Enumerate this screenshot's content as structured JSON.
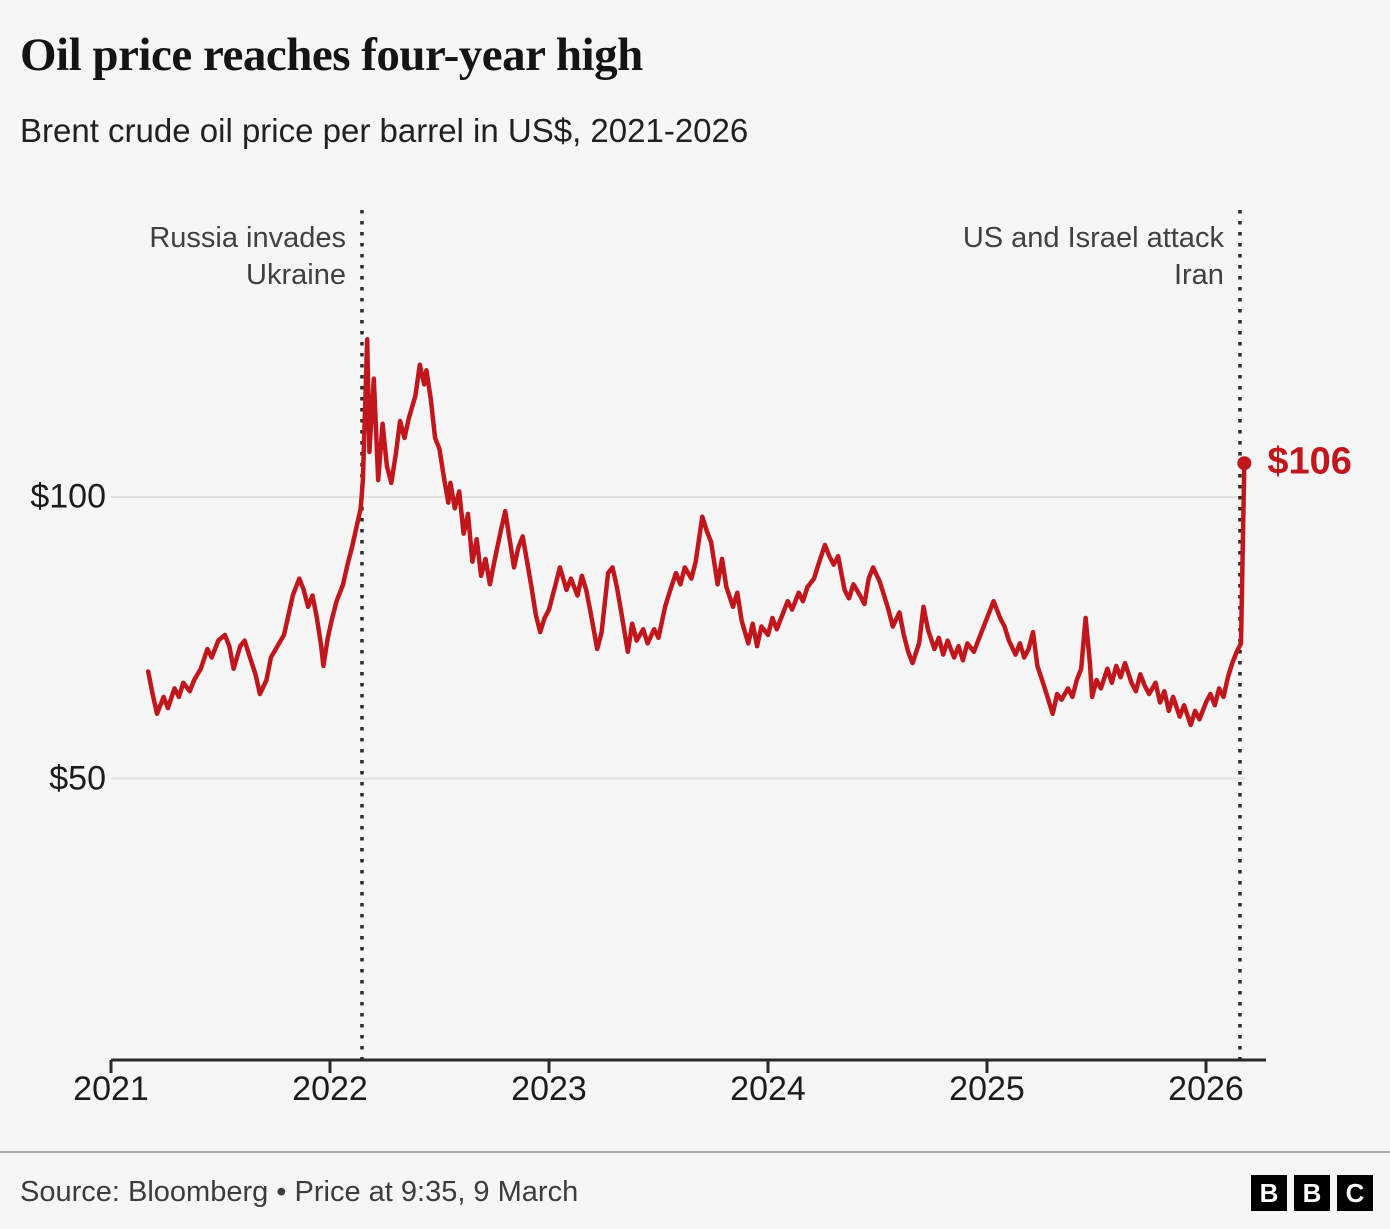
{
  "header": {
    "title": "Oil price reaches four-year high",
    "subtitle": "Brent crude oil price per barrel in US$, 2021-2026"
  },
  "footer": {
    "source_line": "Source: Bloomberg • Price at 9:35, 9 March",
    "logo_letters": [
      "B",
      "B",
      "C"
    ]
  },
  "colors": {
    "line": "#c0161c",
    "grid": "#e0e0e0",
    "axis": "#29292b",
    "event_line": "#2b2b2b"
  },
  "chart_data": {
    "type": "line",
    "title": "Oil price reaches four-year high",
    "subtitle": "Brent crude oil price per barrel in US$, 2021-2026",
    "xlabel": "",
    "ylabel": "Brent crude oil price per barrel (US$)",
    "grid": "horizontal",
    "legend": "none",
    "xlim": [
      2021,
      2026.27
    ],
    "ylim": [
      0,
      150
    ],
    "x_tick_values": [
      2021,
      2022,
      2023,
      2024,
      2025,
      2026
    ],
    "x_tick_labels": [
      "2021",
      "2022",
      "2023",
      "2024",
      "2025",
      "2026"
    ],
    "y_tick_values": [
      50,
      100
    ],
    "y_tick_labels": [
      "$50",
      "$100"
    ],
    "end_label": "$106",
    "end_value": 106,
    "annotations": [
      {
        "text": "Russia invades Ukraine",
        "x": 2022.146
      },
      {
        "text": "US and Israel attack Iran",
        "x": 2026.155
      }
    ],
    "series": [
      {
        "name": "Brent crude oil price (US$ per barrel)",
        "points": [
          [
            2021.17,
            69
          ],
          [
            2021.19,
            65
          ],
          [
            2021.21,
            61.5
          ],
          [
            2021.24,
            64.5
          ],
          [
            2021.26,
            62.5
          ],
          [
            2021.29,
            66
          ],
          [
            2021.31,
            64.5
          ],
          [
            2021.33,
            67
          ],
          [
            2021.36,
            65.5
          ],
          [
            2021.38,
            67.5
          ],
          [
            2021.41,
            69.5
          ],
          [
            2021.44,
            73
          ],
          [
            2021.46,
            71.5
          ],
          [
            2021.49,
            74.5
          ],
          [
            2021.52,
            75.5
          ],
          [
            2021.54,
            73.5
          ],
          [
            2021.56,
            69.5
          ],
          [
            2021.59,
            73.5
          ],
          [
            2021.61,
            74.5
          ],
          [
            2021.63,
            72
          ],
          [
            2021.66,
            68.5
          ],
          [
            2021.68,
            65
          ],
          [
            2021.71,
            67.5
          ],
          [
            2021.73,
            71.5
          ],
          [
            2021.76,
            73.5
          ],
          [
            2021.79,
            75.5
          ],
          [
            2021.81,
            79
          ],
          [
            2021.83,
            82.5
          ],
          [
            2021.86,
            85.5
          ],
          [
            2021.88,
            83.5
          ],
          [
            2021.9,
            80.5
          ],
          [
            2021.92,
            82.5
          ],
          [
            2021.94,
            78.5
          ],
          [
            2021.96,
            73.5
          ],
          [
            2021.97,
            70
          ],
          [
            2021.99,
            75
          ],
          [
            2022.01,
            78.5
          ],
          [
            2022.03,
            81.5
          ],
          [
            2022.06,
            84.5
          ],
          [
            2022.08,
            88
          ],
          [
            2022.1,
            91
          ],
          [
            2022.12,
            94.5
          ],
          [
            2022.14,
            98
          ],
          [
            2022.15,
            103
          ],
          [
            2022.17,
            128
          ],
          [
            2022.18,
            108
          ],
          [
            2022.2,
            121
          ],
          [
            2022.22,
            103
          ],
          [
            2022.24,
            113
          ],
          [
            2022.26,
            105.5
          ],
          [
            2022.28,
            102.5
          ],
          [
            2022.3,
            107.5
          ],
          [
            2022.32,
            113.5
          ],
          [
            2022.34,
            110.5
          ],
          [
            2022.36,
            114
          ],
          [
            2022.39,
            118
          ],
          [
            2022.41,
            123.5
          ],
          [
            2022.43,
            120
          ],
          [
            2022.44,
            122.5
          ],
          [
            2022.46,
            117.5
          ],
          [
            2022.48,
            110.5
          ],
          [
            2022.5,
            108.5
          ],
          [
            2022.52,
            103.5
          ],
          [
            2022.54,
            99
          ],
          [
            2022.55,
            102.5
          ],
          [
            2022.57,
            98
          ],
          [
            2022.59,
            101
          ],
          [
            2022.61,
            93.5
          ],
          [
            2022.63,
            97
          ],
          [
            2022.65,
            88.5
          ],
          [
            2022.67,
            92.5
          ],
          [
            2022.69,
            86
          ],
          [
            2022.71,
            89
          ],
          [
            2022.73,
            84.5
          ],
          [
            2022.75,
            88.5
          ],
          [
            2022.78,
            94
          ],
          [
            2022.8,
            97.5
          ],
          [
            2022.82,
            92.5
          ],
          [
            2022.84,
            87.5
          ],
          [
            2022.86,
            91
          ],
          [
            2022.88,
            93
          ],
          [
            2022.9,
            88.5
          ],
          [
            2022.92,
            84
          ],
          [
            2022.94,
            79
          ],
          [
            2022.96,
            76
          ],
          [
            2022.98,
            78.5
          ],
          [
            2023,
            80
          ],
          [
            2023.03,
            84.5
          ],
          [
            2023.05,
            87.5
          ],
          [
            2023.08,
            83.5
          ],
          [
            2023.1,
            85.5
          ],
          [
            2023.13,
            82.5
          ],
          [
            2023.15,
            86
          ],
          [
            2023.17,
            83.5
          ],
          [
            2023.19,
            79.5
          ],
          [
            2023.22,
            73
          ],
          [
            2023.24,
            76
          ],
          [
            2023.27,
            86.5
          ],
          [
            2023.29,
            87.5
          ],
          [
            2023.31,
            84
          ],
          [
            2023.33,
            79.5
          ],
          [
            2023.36,
            72.5
          ],
          [
            2023.38,
            77.5
          ],
          [
            2023.4,
            74.5
          ],
          [
            2023.43,
            76.5
          ],
          [
            2023.45,
            74
          ],
          [
            2023.48,
            76.5
          ],
          [
            2023.5,
            75
          ],
          [
            2023.53,
            80.5
          ],
          [
            2023.55,
            83
          ],
          [
            2023.58,
            86.5
          ],
          [
            2023.6,
            84.5
          ],
          [
            2023.62,
            87.5
          ],
          [
            2023.65,
            85.5
          ],
          [
            2023.67,
            88.5
          ],
          [
            2023.7,
            96.5
          ],
          [
            2023.72,
            94
          ],
          [
            2023.74,
            92
          ],
          [
            2023.77,
            84.5
          ],
          [
            2023.79,
            89
          ],
          [
            2023.81,
            84
          ],
          [
            2023.84,
            80.5
          ],
          [
            2023.86,
            83
          ],
          [
            2023.88,
            78
          ],
          [
            2023.91,
            74
          ],
          [
            2023.93,
            77.5
          ],
          [
            2023.95,
            73.5
          ],
          [
            2023.97,
            77
          ],
          [
            2024,
            75.5
          ],
          [
            2024.02,
            78.5
          ],
          [
            2024.04,
            76.5
          ],
          [
            2024.07,
            79.5
          ],
          [
            2024.09,
            81.5
          ],
          [
            2024.11,
            80
          ],
          [
            2024.14,
            83
          ],
          [
            2024.16,
            81.5
          ],
          [
            2024.18,
            84
          ],
          [
            2024.21,
            85.5
          ],
          [
            2024.23,
            88
          ],
          [
            2024.26,
            91.5
          ],
          [
            2024.28,
            89.5
          ],
          [
            2024.3,
            88
          ],
          [
            2024.32,
            89.5
          ],
          [
            2024.35,
            83.5
          ],
          [
            2024.37,
            82
          ],
          [
            2024.39,
            84.5
          ],
          [
            2024.42,
            82.5
          ],
          [
            2024.44,
            81
          ],
          [
            2024.46,
            85.5
          ],
          [
            2024.48,
            87.5
          ],
          [
            2024.51,
            85
          ],
          [
            2024.53,
            82.5
          ],
          [
            2024.55,
            80
          ],
          [
            2024.57,
            77
          ],
          [
            2024.6,
            79.5
          ],
          [
            2024.62,
            75.5
          ],
          [
            2024.64,
            72.5
          ],
          [
            2024.66,
            70.5
          ],
          [
            2024.69,
            74
          ],
          [
            2024.71,
            80.5
          ],
          [
            2024.73,
            76.5
          ],
          [
            2024.76,
            73
          ],
          [
            2024.78,
            75
          ],
          [
            2024.8,
            72
          ],
          [
            2024.82,
            74.5
          ],
          [
            2024.85,
            71.5
          ],
          [
            2024.87,
            73.5
          ],
          [
            2024.89,
            71
          ],
          [
            2024.91,
            74
          ],
          [
            2024.94,
            72.5
          ],
          [
            2024.96,
            74.5
          ],
          [
            2024.98,
            76.5
          ],
          [
            2025.01,
            79.5
          ],
          [
            2025.03,
            81.5
          ],
          [
            2025.06,
            78.5
          ],
          [
            2025.08,
            77
          ],
          [
            2025.1,
            74.5
          ],
          [
            2025.13,
            72
          ],
          [
            2025.15,
            74
          ],
          [
            2025.17,
            71.5
          ],
          [
            2025.19,
            73
          ],
          [
            2025.21,
            76
          ],
          [
            2025.23,
            70
          ],
          [
            2025.26,
            66.5
          ],
          [
            2025.28,
            64
          ],
          [
            2025.3,
            61.5
          ],
          [
            2025.32,
            65
          ],
          [
            2025.34,
            64
          ],
          [
            2025.37,
            66
          ],
          [
            2025.39,
            64.5
          ],
          [
            2025.41,
            67.5
          ],
          [
            2025.43,
            69.5
          ],
          [
            2025.45,
            78.5
          ],
          [
            2025.47,
            70.5
          ],
          [
            2025.48,
            64.5
          ],
          [
            2025.5,
            67.5
          ],
          [
            2025.52,
            66
          ],
          [
            2025.55,
            69.5
          ],
          [
            2025.57,
            67
          ],
          [
            2025.59,
            70
          ],
          [
            2025.61,
            68
          ],
          [
            2025.63,
            70.5
          ],
          [
            2025.66,
            67
          ],
          [
            2025.68,
            65.5
          ],
          [
            2025.7,
            68.5
          ],
          [
            2025.72,
            66.5
          ],
          [
            2025.74,
            65
          ],
          [
            2025.77,
            67
          ],
          [
            2025.79,
            63.5
          ],
          [
            2025.81,
            65.5
          ],
          [
            2025.83,
            62
          ],
          [
            2025.85,
            64.5
          ],
          [
            2025.88,
            61
          ],
          [
            2025.9,
            63
          ],
          [
            2025.93,
            59.5
          ],
          [
            2025.95,
            62
          ],
          [
            2025.97,
            60.5
          ],
          [
            2026,
            63.5
          ],
          [
            2026.02,
            65
          ],
          [
            2026.04,
            63
          ],
          [
            2026.06,
            66
          ],
          [
            2026.08,
            64.5
          ],
          [
            2026.1,
            68
          ],
          [
            2026.12,
            70.5
          ],
          [
            2026.14,
            72.5
          ],
          [
            2026.16,
            74
          ],
          [
            2026.175,
            106
          ]
        ]
      }
    ]
  }
}
